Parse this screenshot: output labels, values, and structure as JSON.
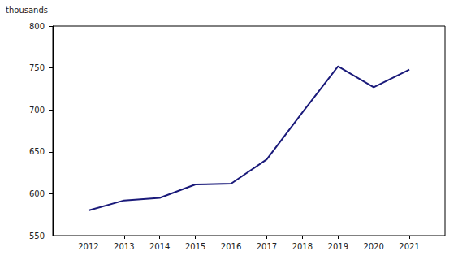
{
  "chart_data": {
    "type": "line",
    "y_label": "thousands",
    "x": [
      2012,
      2013,
      2014,
      2015,
      2016,
      2017,
      2018,
      2019,
      2020,
      2021
    ],
    "values": [
      580,
      592,
      595,
      611,
      612,
      641,
      697,
      752,
      727,
      748
    ],
    "color": "#1a1a7a",
    "xlim": [
      2011,
      2022
    ],
    "xticks": [
      2012,
      2013,
      2014,
      2015,
      2016,
      2017,
      2018,
      2019,
      2020,
      2021
    ],
    "ylim": [
      550,
      800
    ],
    "yticks": [
      550,
      600,
      650,
      700,
      750,
      800
    ],
    "grid": false
  }
}
